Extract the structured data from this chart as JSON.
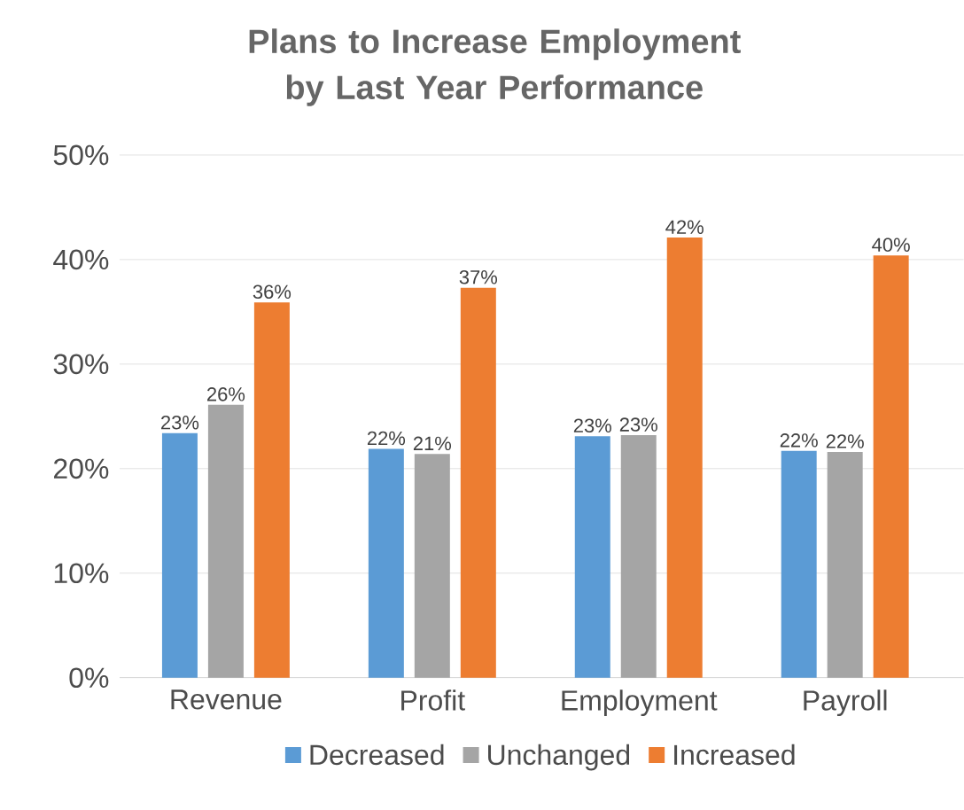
{
  "chart_data": {
    "type": "bar",
    "title": "Plans to Increase Employment by Last Year Performance",
    "categories": [
      "Revenue",
      "Profit",
      "Employment",
      "Payroll"
    ],
    "series": [
      {
        "name": "Decreased",
        "color": "#5b9bd5",
        "values": [
          23.4,
          21.9,
          23.1,
          21.7
        ],
        "value_labels": [
          "23%",
          "22%",
          "23%",
          "22%"
        ]
      },
      {
        "name": "Unchanged",
        "color": "#a5a5a5",
        "values": [
          26.1,
          21.4,
          23.2,
          21.6
        ],
        "value_labels": [
          "26%",
          "21%",
          "23%",
          "22%"
        ]
      },
      {
        "name": "Increased",
        "color": "#ed7d31",
        "values": [
          35.9,
          37.3,
          42.1,
          40.4
        ],
        "value_labels": [
          "36%",
          "37%",
          "42%",
          "40%"
        ]
      }
    ],
    "ylim": [
      0,
      50
    ],
    "yticks": [
      {
        "value": 0,
        "label": "0%"
      },
      {
        "value": 10,
        "label": "10%"
      },
      {
        "value": 20,
        "label": "20%"
      },
      {
        "value": 30,
        "label": "30%"
      },
      {
        "value": 40,
        "label": "40%"
      },
      {
        "value": 50,
        "label": "50%"
      }
    ],
    "grid": "y",
    "legend": "bottom"
  }
}
